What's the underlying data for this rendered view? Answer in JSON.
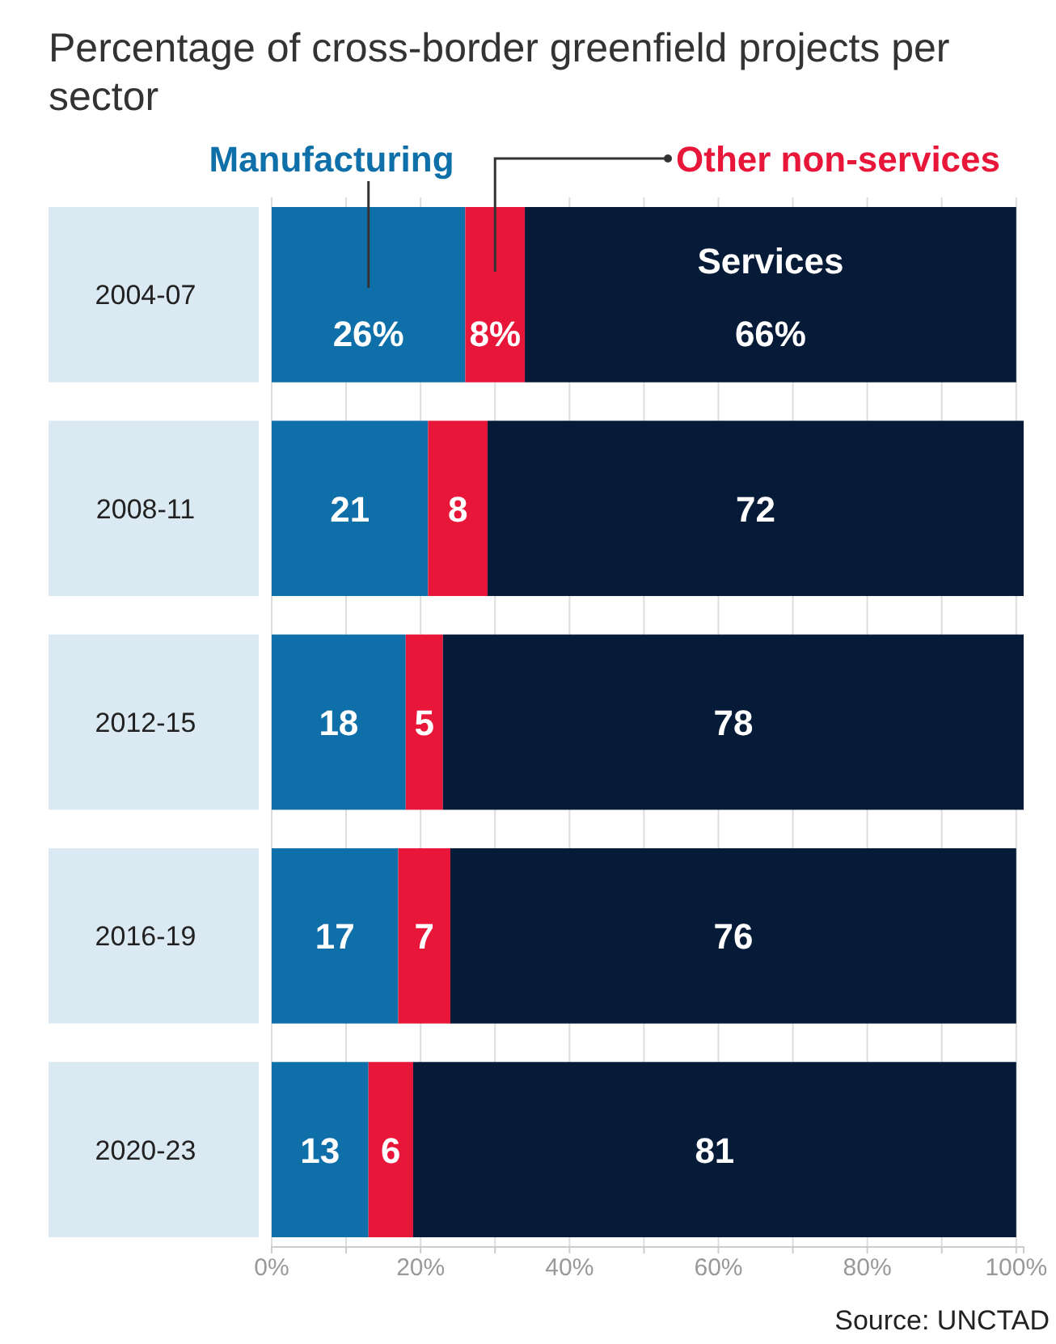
{
  "chart_data": {
    "type": "bar",
    "orientation": "horizontal",
    "stacked": true,
    "title": "Percentage of cross-border greenfield projects per sector",
    "categories": [
      "2004-07",
      "2008-11",
      "2012-15",
      "2016-19",
      "2020-23"
    ],
    "series": [
      {
        "name": "Manufacturing",
        "color": "#0f6fa8",
        "values": [
          26,
          21,
          18,
          17,
          13
        ],
        "value_labels": [
          "26%",
          "21",
          "18",
          "17",
          "13"
        ]
      },
      {
        "name": "Other non-services",
        "color": "#e8173a",
        "values": [
          8,
          8,
          5,
          7,
          6
        ],
        "value_labels": [
          "8%",
          "8",
          "5",
          "7",
          "6"
        ]
      },
      {
        "name": "Services",
        "color": "#061b38",
        "values": [
          66,
          72,
          78,
          76,
          81
        ],
        "value_labels": [
          "66%",
          "72",
          "78",
          "76",
          "81"
        ]
      }
    ],
    "xlim": [
      0,
      101
    ],
    "xticks": [
      {
        "value": 0,
        "label": "0%"
      },
      {
        "value": 10,
        "label": null
      },
      {
        "value": 20,
        "label": "20%"
      },
      {
        "value": 30,
        "label": null
      },
      {
        "value": 40,
        "label": "40%"
      },
      {
        "value": 50,
        "label": null
      },
      {
        "value": 60,
        "label": "60%"
      },
      {
        "value": 70,
        "label": null
      },
      {
        "value": 80,
        "label": "80%"
      },
      {
        "value": 90,
        "label": null
      },
      {
        "value": 100,
        "label": "100%"
      }
    ],
    "grid": "x",
    "legend": "top",
    "annotations": [
      "Source: UNCTAD"
    ]
  }
}
